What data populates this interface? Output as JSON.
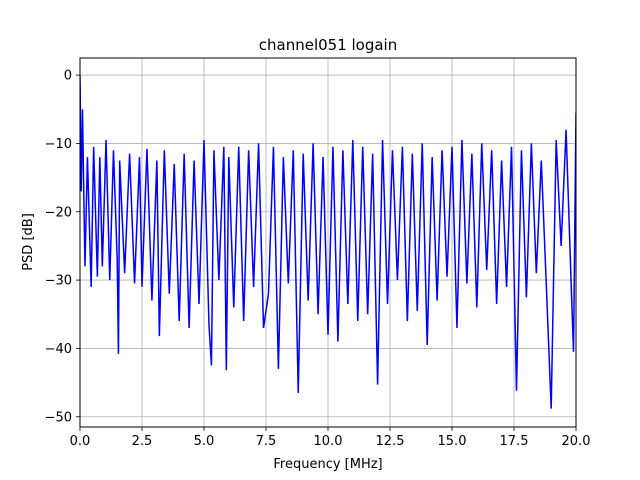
{
  "chart_data": {
    "type": "line",
    "title": "channel051 logain",
    "xlabel": "Frequency [MHz]",
    "ylabel": "PSD [dB]",
    "xlim": [
      0,
      20
    ],
    "ylim": [
      -51.5,
      2.5
    ],
    "grid": true,
    "x_ticks": [
      0,
      2.5,
      5,
      7.5,
      10,
      12.5,
      15,
      17.5,
      20
    ],
    "x_tick_labels": [
      "0.0",
      "2.5",
      "5.0",
      "7.5",
      "10.0",
      "12.5",
      "15.0",
      "17.5",
      "20.0"
    ],
    "y_ticks": [
      0,
      -10,
      -20,
      -30,
      -40,
      -50
    ],
    "y_tick_labels": [
      "0",
      "−10",
      "−20",
      "−30",
      "−40",
      "−50"
    ],
    "series": [
      {
        "color": "#0000ff",
        "x": [
          0.0,
          0.05,
          0.1,
          0.2,
          0.3,
          0.45,
          0.55,
          0.7,
          0.8,
          0.9,
          1.05,
          1.2,
          1.35,
          1.5,
          1.55,
          1.6,
          1.8,
          2.0,
          2.2,
          2.4,
          2.5,
          2.7,
          2.9,
          3.1,
          3.2,
          3.4,
          3.6,
          3.8,
          4.0,
          4.2,
          4.4,
          4.6,
          4.8,
          5.0,
          5.2,
          5.3,
          5.4,
          5.6,
          5.8,
          5.9,
          6.0,
          6.2,
          6.4,
          6.6,
          6.8,
          7.0,
          7.2,
          7.4,
          7.6,
          7.8,
          8.0,
          8.2,
          8.4,
          8.6,
          8.8,
          9.0,
          9.2,
          9.4,
          9.6,
          9.8,
          10.0,
          10.2,
          10.4,
          10.6,
          10.8,
          11.0,
          11.2,
          11.4,
          11.6,
          11.8,
          12.0,
          12.2,
          12.4,
          12.6,
          12.8,
          13.0,
          13.2,
          13.4,
          13.6,
          13.8,
          14.0,
          14.2,
          14.4,
          14.6,
          14.8,
          15.0,
          15.2,
          15.4,
          15.6,
          15.8,
          16.0,
          16.2,
          16.4,
          16.6,
          16.8,
          17.0,
          17.2,
          17.4,
          17.6,
          17.8,
          18.0,
          18.2,
          18.4,
          18.6,
          18.8,
          19.0,
          19.2,
          19.4,
          19.6,
          19.8,
          19.9,
          20.0
        ],
        "y": [
          0.0,
          -17.0,
          -5.0,
          -28.0,
          -12.0,
          -31.0,
          -10.5,
          -29.5,
          -12.0,
          -28.0,
          -9.5,
          -30.0,
          -11.0,
          -27.0,
          -40.8,
          -12.5,
          -29.0,
          -11.5,
          -30.5,
          -12.0,
          -31.0,
          -10.8,
          -33.0,
          -12.5,
          -38.2,
          -11.0,
          -32.0,
          -13.0,
          -36.0,
          -11.5,
          -37.0,
          -12.5,
          -33.5,
          -9.5,
          -36.5,
          -42.5,
          -11.0,
          -30.0,
          -10.5,
          -43.2,
          -12.0,
          -34.0,
          -10.5,
          -36.0,
          -11.0,
          -31.0,
          -10.0,
          -37.0,
          -32.0,
          -10.5,
          -43.0,
          -12.0,
          -30.5,
          -11.0,
          -46.5,
          -11.5,
          -33.0,
          -10.0,
          -35.0,
          -12.0,
          -38.0,
          -10.5,
          -39.0,
          -11.0,
          -33.5,
          -9.5,
          -36.0,
          -10.5,
          -35.0,
          -11.5,
          -45.3,
          -9.5,
          -33.5,
          -11.0,
          -30.0,
          -10.5,
          -36.0,
          -11.5,
          -34.5,
          -10.0,
          -39.5,
          -12.0,
          -33.0,
          -11.0,
          -29.5,
          -10.5,
          -37.0,
          -9.5,
          -30.5,
          -11.5,
          -34.0,
          -10.0,
          -28.5,
          -11.0,
          -33.5,
          -12.5,
          -31.0,
          -10.5,
          -46.2,
          -11.0,
          -32.5,
          -10.0,
          -29.0,
          -12.5,
          -30.5,
          -48.8,
          -9.5,
          -25.0,
          -8.0,
          -30.0,
          -40.5,
          -5.5
        ]
      }
    ]
  }
}
